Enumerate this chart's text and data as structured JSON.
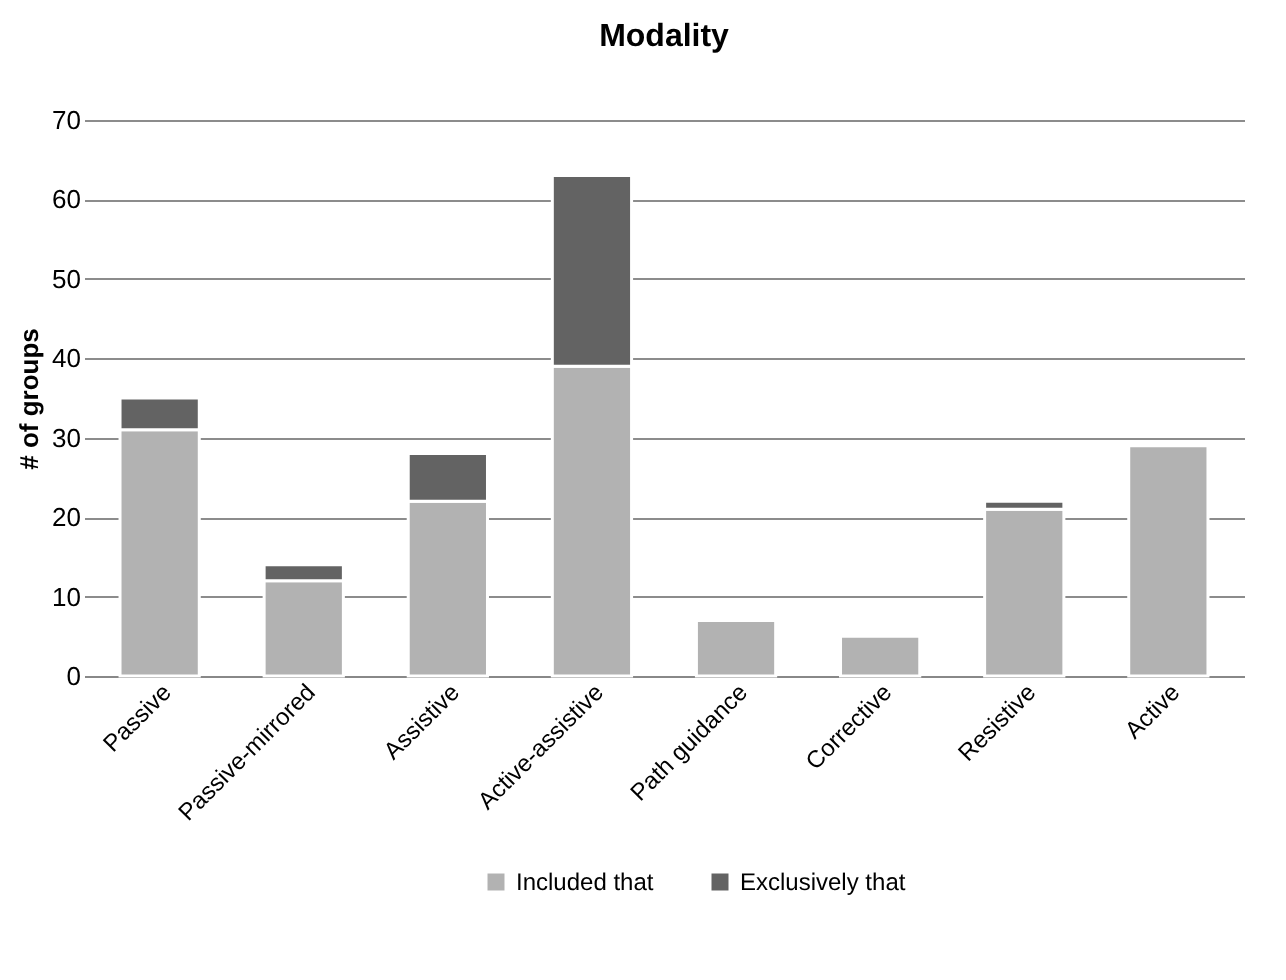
{
  "chart_data": {
    "type": "bar",
    "title": "Modality",
    "ylabel": "# of groups",
    "categories": [
      "Passive",
      "Passive-mirrored",
      "Assistive",
      "Active-assistive",
      "Path guidance",
      "Corrective",
      "Resistive",
      "Active"
    ],
    "series": [
      {
        "name": "Included that",
        "color": "#b2b2b2",
        "values": [
          31,
          12,
          22,
          39,
          7,
          5,
          21,
          29
        ]
      },
      {
        "name": "Exclusively that",
        "color": "#636363",
        "values": [
          4,
          2,
          6,
          24,
          0,
          0,
          1,
          0
        ]
      }
    ],
    "stacked": true,
    "ylim": [
      0,
      70
    ],
    "yticks": [
      0,
      10,
      20,
      30,
      40,
      50,
      60,
      70
    ],
    "grid": "y",
    "legend": "bottom"
  }
}
